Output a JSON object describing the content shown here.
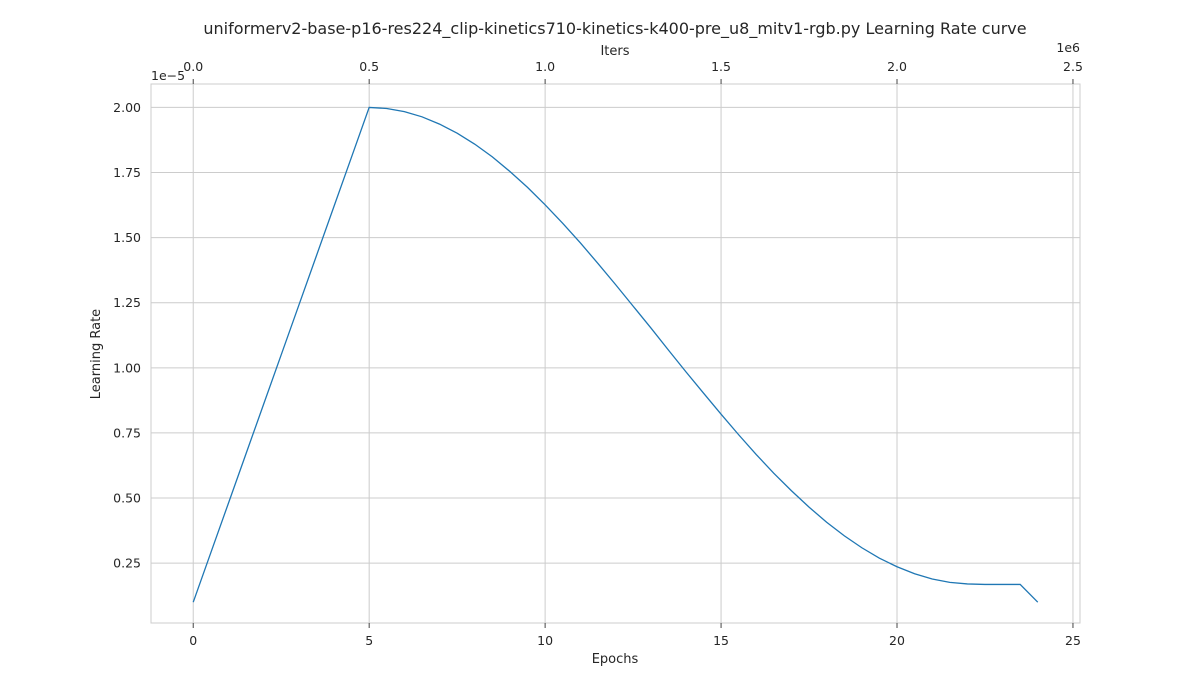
{
  "chart_data": {
    "type": "line",
    "title": "uniformerv2-base-p16-res224_clip-kinetics710-kinetics-k400-pre_u8_mitv1-rgb.py Learning Rate curve",
    "xlabel": "Epochs",
    "ylabel": "Learning Rate",
    "top_xlabel": "Iters",
    "top_offset_label": "1e6",
    "y_offset_label": "1e−5",
    "xlim": [
      -1.2,
      25.2
    ],
    "ylim": [
      0.02,
      2.09
    ],
    "top_xlim": [
      -0.12,
      2.52
    ],
    "x_ticks": [
      0,
      5,
      10,
      15,
      20,
      25
    ],
    "x_tick_labels": [
      "0",
      "5",
      "10",
      "15",
      "20",
      "25"
    ],
    "top_ticks": [
      0.0,
      0.5,
      1.0,
      1.5,
      2.0,
      2.5
    ],
    "top_tick_labels": [
      "0.0",
      "0.5",
      "1.0",
      "1.5",
      "2.0",
      "2.5"
    ],
    "y_ticks": [
      0.25,
      0.5,
      0.75,
      1.0,
      1.25,
      1.5,
      1.75,
      2.0
    ],
    "y_tick_labels": [
      "0.25",
      "0.50",
      "0.75",
      "1.00",
      "1.25",
      "1.50",
      "1.75",
      "2.00"
    ],
    "grid": true,
    "line_color": "#1f77b4",
    "series": [
      {
        "x": [
          0,
          0.5,
          1,
          1.5,
          2,
          2.5,
          3,
          3.5,
          4,
          4.5,
          5,
          5.5,
          6,
          6.5,
          7,
          7.5,
          8,
          8.5,
          9,
          9.5,
          10,
          10.5,
          11,
          11.5,
          12,
          12.5,
          13,
          13.5,
          14,
          14.5,
          15,
          15.5,
          16,
          16.5,
          17,
          17.5,
          18,
          18.5,
          19,
          19.5,
          20,
          20.5,
          21,
          21.5,
          22,
          22.5,
          23,
          23.5,
          24
        ],
        "values": [
          0.1,
          0.29,
          0.48,
          0.67,
          0.86,
          1.05,
          1.24,
          1.43,
          1.62,
          1.81,
          2.0,
          1.996,
          1.984,
          1.964,
          1.936,
          1.901,
          1.859,
          1.81,
          1.754,
          1.693,
          1.626,
          1.555,
          1.48,
          1.401,
          1.32,
          1.237,
          1.154,
          1.069,
          0.985,
          0.903,
          0.822,
          0.743,
          0.667,
          0.595,
          0.528,
          0.465,
          0.407,
          0.355,
          0.309,
          0.269,
          0.236,
          0.209,
          0.189,
          0.176,
          0.17,
          0.168,
          0.168,
          0.168,
          0.1
        ]
      }
    ]
  }
}
